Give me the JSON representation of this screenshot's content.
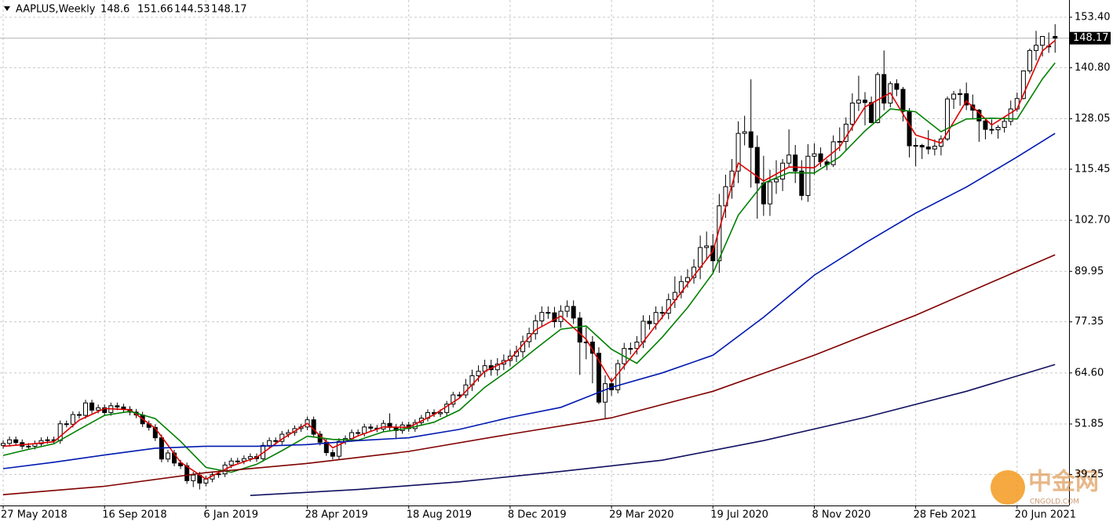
{
  "chart_data": {
    "type": "candlestick",
    "title": "AAPLUS,Weekly",
    "watermark": [
      "中金网",
      "CNGOLD.COM"
    ],
    "xlim": [
      -0.5,
      168.2
    ],
    "ylim": [
      31.5,
      157.7
    ],
    "grid": true,
    "up_color": "#ffffff",
    "down_color": "#000000",
    "candle_outline": "#000000",
    "xticks": [
      {
        "value": 0,
        "label": "27 May 2018"
      },
      {
        "value": 16,
        "label": "16 Sep 2018"
      },
      {
        "value": 32,
        "label": "6 Jan 2019"
      },
      {
        "value": 48,
        "label": "28 Apr 2019"
      },
      {
        "value": 64,
        "label": "18 Aug 2019"
      },
      {
        "value": 80,
        "label": "8 Dec 2019"
      },
      {
        "value": 96,
        "label": "29 Mar 2020"
      },
      {
        "value": 112,
        "label": "19 Jul 2020"
      },
      {
        "value": 128,
        "label": "8 Nov 2020"
      },
      {
        "value": 144,
        "label": "28 Feb 2021"
      },
      {
        "value": 160,
        "label": "20 Jun 2021"
      }
    ],
    "yticks": [
      {
        "value": 153.4,
        "label": "153.40"
      },
      {
        "value": 140.8,
        "label": "140.80"
      },
      {
        "value": 128.05,
        "label": "128.05"
      },
      {
        "value": 115.45,
        "label": "115.45"
      },
      {
        "value": 102.7,
        "label": "102.70"
      },
      {
        "value": 89.95,
        "label": "89.95"
      },
      {
        "value": 77.35,
        "label": "77.35"
      },
      {
        "value": 64.6,
        "label": "64.60"
      },
      {
        "value": 51.85,
        "label": "51.85"
      },
      {
        "value": 39.25,
        "label": "39.25"
      }
    ],
    "open": [
      46.5,
      47.0,
      47.9,
      47.2,
      46.3,
      46.3,
      46.9,
      47.7,
      47.9,
      47.7,
      51.9,
      51.8,
      54.2,
      54.0,
      57.1,
      55.3,
      55.9,
      54.7,
      56.4,
      56.1,
      55.5,
      54.8,
      54.1,
      51.9,
      51.0,
      48.4,
      43.1,
      44.6,
      42.1,
      41.4,
      37.7,
      39.1,
      37.1,
      38.1,
      39.2,
      39.4,
      41.6,
      42.6,
      42.6,
      43.2,
      43.7,
      43.2,
      46.5,
      47.7,
      47.5,
      49.3,
      49.7,
      50.7,
      51.1,
      52.9,
      49.3,
      47.3,
      44.7,
      43.8,
      47.5,
      48.2,
      49.7,
      49.5,
      51.1,
      50.8,
      50.6,
      52.0,
      51.0,
      50.2,
      51.6,
      50.7,
      52.2,
      53.3,
      54.7,
      54.4,
      54.7,
      56.8,
      59.1,
      59.1,
      61.6,
      63.9,
      65.0,
      66.4,
      65.4,
      66.8,
      67.7,
      68.8,
      69.9,
      72.4,
      74.4,
      77.6,
      79.7,
      79.6,
      77.4,
      80.0,
      81.2,
      78.3,
      72.3,
      72.3,
      69.5,
      57.3,
      61.9,
      60.4,
      66.9,
      70.7,
      70.7,
      72.3,
      77.5,
      76.9,
      79.7,
      79.5,
      82.9,
      84.7,
      87.4,
      88.4,
      91.0,
      95.9,
      96.3,
      92.6,
      106.3,
      111.1,
      115.0,
      124.4,
      124.8,
      120.9,
      112.0,
      106.8,
      112.3,
      113.0,
      116.97,
      119.0,
      115.0,
      108.9,
      118.7,
      119.3,
      117.3,
      116.6,
      122.3,
      122.4,
      126.7,
      131.97,
      132.7,
      132.1,
      127.1,
      139.1,
      131.96,
      136.8,
      135.4,
      129.9,
      121.3,
      121.4,
      121.0,
      120.5,
      121.2,
      123.0,
      133.0,
      134.2,
      134.3,
      131.5,
      130.2,
      127.5,
      125.4,
      125.3,
      125.9,
      127.4,
      130.5,
      133.1,
      140.0,
      145.1,
      146.4,
      146.2,
      148.6
    ],
    "high": [
      47.8,
      48.7,
      48.7,
      48.0,
      47.1,
      47.7,
      48.5,
      48.7,
      48.7,
      52.7,
      52.7,
      55.0,
      55.0,
      57.9,
      57.9,
      56.7,
      56.7,
      57.2,
      57.2,
      56.9,
      56.3,
      55.6,
      54.9,
      52.7,
      51.8,
      49.2,
      45.4,
      45.4,
      42.9,
      42.2,
      39.9,
      39.9,
      38.9,
      40.0,
      40.2,
      42.4,
      43.4,
      43.4,
      44.0,
      44.5,
      44.5,
      47.3,
      48.5,
      48.5,
      50.1,
      50.5,
      51.5,
      51.9,
      53.7,
      53.7,
      50.1,
      48.1,
      45.5,
      48.3,
      49.0,
      50.5,
      50.5,
      51.9,
      51.9,
      51.6,
      52.8,
      54.5,
      51.8,
      52.4,
      52.4,
      53.0,
      54.1,
      55.5,
      55.5,
      55.5,
      57.6,
      59.9,
      59.9,
      63.1,
      65.4,
      66.5,
      67.9,
      67.9,
      68.3,
      69.2,
      70.3,
      71.4,
      73.9,
      75.9,
      79.1,
      81.2,
      81.2,
      81.1,
      81.5,
      82.7,
      82.7,
      79.8,
      76.0,
      73.8,
      71.0,
      64.0,
      63.4,
      67.9,
      72.1,
      72.2,
      73.8,
      79.0,
      79.0,
      81.2,
      81.2,
      84.4,
      88.7,
      88.9,
      90.5,
      93.0,
      98.9,
      99.9,
      99.3,
      109.3,
      114.1,
      118.0,
      127.4,
      128.8,
      137.9,
      123.9,
      118.8,
      115.3,
      117.7,
      118.0,
      125.4,
      121.5,
      117.7,
      121.7,
      121.9,
      120.9,
      117.9,
      123.9,
      125.9,
      128.4,
      134.4,
      138.8,
      134.7,
      133.6,
      139.7,
      145.1,
      137.4,
      137.9,
      136.0,
      130.7,
      123.2,
      121.8,
      125.2,
      122.9,
      123.9,
      133.6,
      135.0,
      135.5,
      137.1,
      134.1,
      130.5,
      128.0,
      127.9,
      126.5,
      128.5,
      132.6,
      134.6,
      140.1,
      145.6,
      150.0,
      148.7,
      149.6,
      151.66
    ],
    "low": [
      45.7,
      46.2,
      46.4,
      45.5,
      45.5,
      45.5,
      46.1,
      46.9,
      46.9,
      46.9,
      51.0,
      51.0,
      53.2,
      53.2,
      54.5,
      54.5,
      53.9,
      53.9,
      55.3,
      54.7,
      54.0,
      53.3,
      51.1,
      50.2,
      47.6,
      42.3,
      42.3,
      41.3,
      40.6,
      36.9,
      36.1,
      35.5,
      36.3,
      37.3,
      38.4,
      38.6,
      40.8,
      41.8,
      41.8,
      42.4,
      42.4,
      42.4,
      45.7,
      46.7,
      46.7,
      48.5,
      48.9,
      49.9,
      50.3,
      48.5,
      46.5,
      43.9,
      43.0,
      43.0,
      46.7,
      47.4,
      48.7,
      48.7,
      50.0,
      49.8,
      49.8,
      50.2,
      48.1,
      49.4,
      49.9,
      49.9,
      51.4,
      52.5,
      53.6,
      53.6,
      53.9,
      56.0,
      58.3,
      58.3,
      60.1,
      62.4,
      63.5,
      63.9,
      63.9,
      65.3,
      66.2,
      67.3,
      68.4,
      70.9,
      72.9,
      76.1,
      78.1,
      75.9,
      75.9,
      78.5,
      76.8,
      64.1,
      68.0,
      62.0,
      56.8,
      53.2,
      58.9,
      59.5,
      65.4,
      69.2,
      69.2,
      70.8,
      75.4,
      75.4,
      78.0,
      78.0,
      80.8,
      83.2,
      85.9,
      86.9,
      88.0,
      92.9,
      89.6,
      89.6,
      103.3,
      108.1,
      112.0,
      121.4,
      110.9,
      103.1,
      103.8,
      103.8,
      109.3,
      110.0,
      116.0,
      112.0,
      107.7,
      107.3,
      114.1,
      116.0,
      115.2,
      116.0,
      120.0,
      120.0,
      125.0,
      130.0,
      126.4,
      126.9,
      126.9,
      130.2,
      130.9,
      133.7,
      127.4,
      118.4,
      116.2,
      118.0,
      119.2,
      118.9,
      118.9,
      122.5,
      130.5,
      131.3,
      130.2,
      127.9,
      122.3,
      122.9,
      124.2,
      123.1,
      124.6,
      126.4,
      129.8,
      132.9,
      139.3,
      142.6,
      143.6,
      144.5,
      144.53
    ],
    "close": [
      47.0,
      47.9,
      47.2,
      46.3,
      46.3,
      46.9,
      47.7,
      47.9,
      47.7,
      51.9,
      51.8,
      54.2,
      54.0,
      57.1,
      55.3,
      55.9,
      54.7,
      56.4,
      56.1,
      55.5,
      54.8,
      54.1,
      51.9,
      51.0,
      48.4,
      43.1,
      44.6,
      42.1,
      41.4,
      37.7,
      39.1,
      37.1,
      38.1,
      39.2,
      39.4,
      41.6,
      42.6,
      42.6,
      43.2,
      43.7,
      43.2,
      46.5,
      47.7,
      47.5,
      49.3,
      49.7,
      50.7,
      51.1,
      52.9,
      49.3,
      47.3,
      44.7,
      43.8,
      47.5,
      48.2,
      49.7,
      49.5,
      51.1,
      50.8,
      50.6,
      52.0,
      51.0,
      50.2,
      51.6,
      50.7,
      52.2,
      53.3,
      54.7,
      54.4,
      54.7,
      56.8,
      59.1,
      59.1,
      61.6,
      63.9,
      65.0,
      66.4,
      65.4,
      66.8,
      67.7,
      68.8,
      69.9,
      72.4,
      74.4,
      77.6,
      79.7,
      79.6,
      77.4,
      80.0,
      81.2,
      78.3,
      72.3,
      72.3,
      69.5,
      57.3,
      61.9,
      60.4,
      66.9,
      70.7,
      70.7,
      72.3,
      77.5,
      76.9,
      79.7,
      79.5,
      82.9,
      84.7,
      87.4,
      88.4,
      91.0,
      95.9,
      96.3,
      92.6,
      106.3,
      111.1,
      115.0,
      124.4,
      124.8,
      120.9,
      112.0,
      106.8,
      112.3,
      113.0,
      116.97,
      119.0,
      115.0,
      108.9,
      118.7,
      119.3,
      117.3,
      116.6,
      122.3,
      122.4,
      126.7,
      131.97,
      132.7,
      132.1,
      127.1,
      139.1,
      131.96,
      136.8,
      135.4,
      129.9,
      121.3,
      121.4,
      121.0,
      120.5,
      121.2,
      123.0,
      133.0,
      134.2,
      134.3,
      131.5,
      130.2,
      127.5,
      125.4,
      125.3,
      125.9,
      127.4,
      130.5,
      133.1,
      140.0,
      145.1,
      146.4,
      148.6,
      146.2,
      148.17
    ],
    "series": [
      {
        "color": "#e00000",
        "x": [
          0,
          4,
          8,
          12,
          16,
          20,
          24,
          28,
          32,
          36,
          40,
          44,
          48,
          52,
          56,
          60,
          64,
          68,
          72,
          76,
          80,
          84,
          88,
          92,
          96,
          100,
          104,
          108,
          112,
          116,
          120,
          124,
          128,
          132,
          136,
          140,
          144,
          148,
          152,
          156,
          160,
          164,
          166
        ],
        "values": [
          46.3,
          46.8,
          47.4,
          52.8,
          55.7,
          55.4,
          50.8,
          42.3,
          38.1,
          41.3,
          43.5,
          48.1,
          52.0,
          45.9,
          48.9,
          51.1,
          51.0,
          54.2,
          58.3,
          65.0,
          68.0,
          75.3,
          78.8,
          73.0,
          62.4,
          70.3,
          78.5,
          86.8,
          95.0,
          117.0,
          112.5,
          116.0,
          115.8,
          121.0,
          131.0,
          134.5,
          124.0,
          122.0,
          132.5,
          126.5,
          130.5,
          145.0,
          147.6
        ]
      },
      {
        "color": "#008000",
        "x": [
          0,
          4,
          8,
          12,
          16,
          20,
          24,
          28,
          32,
          36,
          40,
          44,
          48,
          52,
          56,
          60,
          64,
          68,
          72,
          76,
          80,
          84,
          88,
          92,
          96,
          100,
          104,
          108,
          112,
          116,
          120,
          124,
          128,
          132,
          136,
          140,
          144,
          148,
          152,
          156,
          160,
          164,
          166
        ],
        "values": [
          44.0,
          45.5,
          46.9,
          50.5,
          54.0,
          55.0,
          53.2,
          47.5,
          41.0,
          39.8,
          41.8,
          45.2,
          48.8,
          48.0,
          47.8,
          49.9,
          50.8,
          52.3,
          55.3,
          61.0,
          65.5,
          70.6,
          75.5,
          76.3,
          70.5,
          67.0,
          73.5,
          80.9,
          89.5,
          104.0,
          112.0,
          114.6,
          114.5,
          118.5,
          125.0,
          130.5,
          129.8,
          124.8,
          128.0,
          128.2,
          128.0,
          138.0,
          142.0
        ]
      },
      {
        "color": "#0018b0",
        "x": [
          0,
          8,
          16,
          24,
          32,
          40,
          48,
          56,
          64,
          72,
          80,
          88,
          96,
          104,
          112,
          120,
          128,
          136,
          144,
          152,
          160,
          166
        ],
        "values": [
          40.7,
          42.3,
          44.1,
          45.8,
          46.3,
          46.3,
          46.7,
          47.7,
          48.4,
          50.5,
          53.5,
          56.0,
          61.0,
          64.6,
          69.0,
          78.5,
          89.0,
          97.0,
          104.5,
          111.0,
          118.5,
          124.4
        ]
      },
      {
        "color": "#800000",
        "x": [
          0,
          16,
          32,
          48,
          64,
          80,
          96,
          112,
          128,
          144,
          160,
          166
        ],
        "values": [
          34.2,
          36.3,
          39.7,
          42.0,
          45.0,
          49.3,
          53.4,
          60.0,
          69.0,
          79.0,
          90.0,
          94.1
        ]
      },
      {
        "color": "#101060",
        "x": [
          39,
          56,
          72,
          88,
          104,
          120,
          136,
          152,
          166
        ],
        "values": [
          34.0,
          35.5,
          37.4,
          40.0,
          42.8,
          47.7,
          53.5,
          60.0,
          66.7
        ]
      }
    ]
  }
}
